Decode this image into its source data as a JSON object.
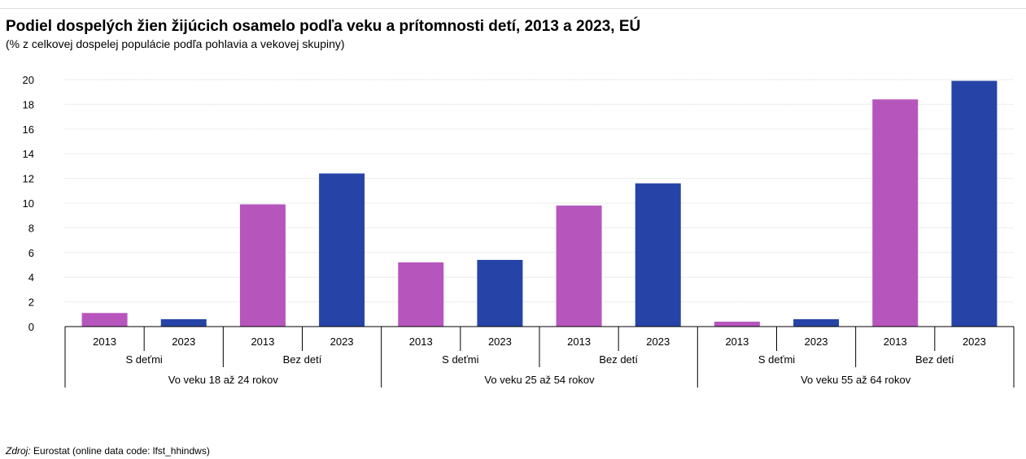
{
  "chart_data": {
    "type": "bar",
    "title": "Podiel dospelých žien žijúcich osamelo podľa veku a prítomnosti detí, 2013 a 2023, EÚ",
    "subtitle": "(% z celkovej dospelej populácie podľa pohlavia a vekovej skupiny)",
    "ylim": [
      0,
      20
    ],
    "yticks": [
      0,
      2,
      4,
      6,
      8,
      10,
      12,
      14,
      16,
      18,
      20
    ],
    "grid": true,
    "groups": [
      {
        "label": "Vo veku 18 až 24 rokov",
        "subgroups": [
          {
            "label": "S deťmi",
            "bars": [
              {
                "year": "2013",
                "value": 1.1
              },
              {
                "year": "2023",
                "value": 0.6
              }
            ]
          },
          {
            "label": "Bez detí",
            "bars": [
              {
                "year": "2013",
                "value": 9.9
              },
              {
                "year": "2023",
                "value": 12.4
              }
            ]
          }
        ]
      },
      {
        "label": "Vo veku 25 až 54 rokov",
        "subgroups": [
          {
            "label": "S deťmi",
            "bars": [
              {
                "year": "2013",
                "value": 5.2
              },
              {
                "year": "2023",
                "value": 5.4
              }
            ]
          },
          {
            "label": "Bez detí",
            "bars": [
              {
                "year": "2013",
                "value": 9.8
              },
              {
                "year": "2023",
                "value": 11.6
              }
            ]
          }
        ]
      },
      {
        "label": "Vo veku 55 až 64 rokov",
        "subgroups": [
          {
            "label": "S deťmi",
            "bars": [
              {
                "year": "2013",
                "value": 0.4
              },
              {
                "year": "2023",
                "value": 0.6
              }
            ]
          },
          {
            "label": "Bez detí",
            "bars": [
              {
                "year": "2013",
                "value": 18.4
              },
              {
                "year": "2023",
                "value": 19.9
              }
            ]
          }
        ]
      }
    ],
    "colors": {
      "2013": "#b656bd",
      "2023": "#2644a7"
    }
  },
  "source": {
    "prefix": "Zdroj:",
    "text": " Eurostat (online data code: lfst_hhindws)"
  }
}
